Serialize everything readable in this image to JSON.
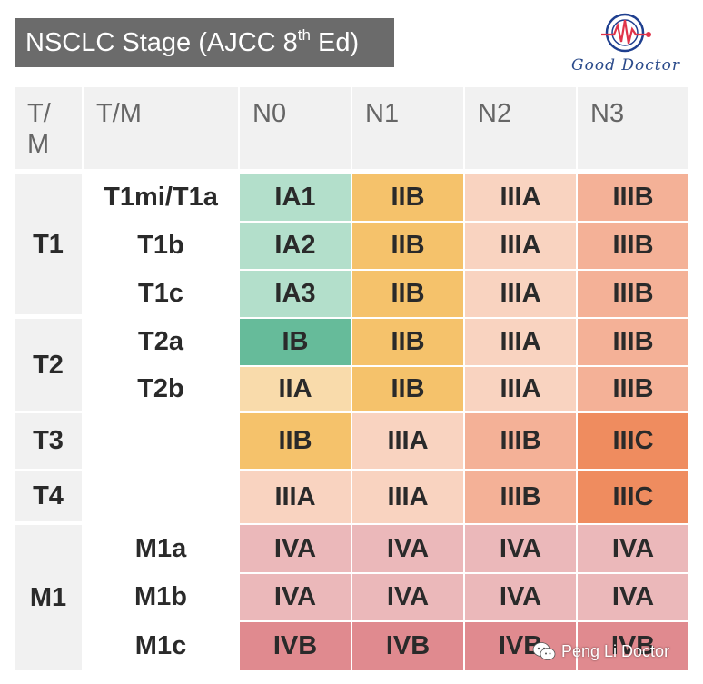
{
  "title": {
    "main": "NSCLC Stage (AJCC 8",
    "sup": "th",
    "tail": " Ed)"
  },
  "logo": {
    "text": "Good Doctor",
    "icon": "heartbeat-stethoscope-icon"
  },
  "watermark": {
    "text": "Peng Li Doctor",
    "icon": "wechat-icon"
  },
  "header": {
    "tm1": "T/\nM",
    "tm2": "T/M",
    "n0": "N0",
    "n1": "N1",
    "n2": "N2",
    "n3": "N3"
  },
  "groups": {
    "t1": "T1",
    "t2": "T2",
    "t3": "T3",
    "t4": "T4",
    "m1": "M1"
  },
  "rows": [
    {
      "sub": "T1mi/T1a",
      "stages": [
        "IA1",
        "IIB",
        "IIIA",
        "IIIB"
      ]
    },
    {
      "sub": "T1b",
      "stages": [
        "IA2",
        "IIB",
        "IIIA",
        "IIIB"
      ]
    },
    {
      "sub": "T1c",
      "stages": [
        "IA3",
        "IIB",
        "IIIA",
        "IIIB"
      ]
    },
    {
      "sub": "T2a",
      "stages": [
        "IB",
        "IIB",
        "IIIA",
        "IIIB"
      ]
    },
    {
      "sub": "T2b",
      "stages": [
        "IIA",
        "IIB",
        "IIIA",
        "IIIB"
      ]
    },
    {
      "sub": "",
      "stages": [
        "IIB",
        "IIIA",
        "IIIB",
        "IIIC"
      ]
    },
    {
      "sub": "",
      "stages": [
        "IIIA",
        "IIIA",
        "IIIB",
        "IIIC"
      ]
    },
    {
      "sub": "M1a",
      "stages": [
        "IVA",
        "IVA",
        "IVA",
        "IVA"
      ]
    },
    {
      "sub": "M1b",
      "stages": [
        "IVA",
        "IVA",
        "IVA",
        "IVA"
      ]
    },
    {
      "sub": "M1c",
      "stages": [
        "IVB",
        "IVB",
        "IVB",
        "IVB"
      ]
    }
  ],
  "stage_colors": {
    "IA1": "#b3dfcb",
    "IA2": "#b3dfcb",
    "IA3": "#b3dfcb",
    "IB": "#66bb9a",
    "IIA": "#f9dbab",
    "IIB": "#f5c26b",
    "IIIA": "#f9d3c0",
    "IIIB": "#f4b197",
    "IIIC": "#ef8c5f",
    "IVA": "#ebb8ba",
    "IVB": "#e08a8f"
  }
}
